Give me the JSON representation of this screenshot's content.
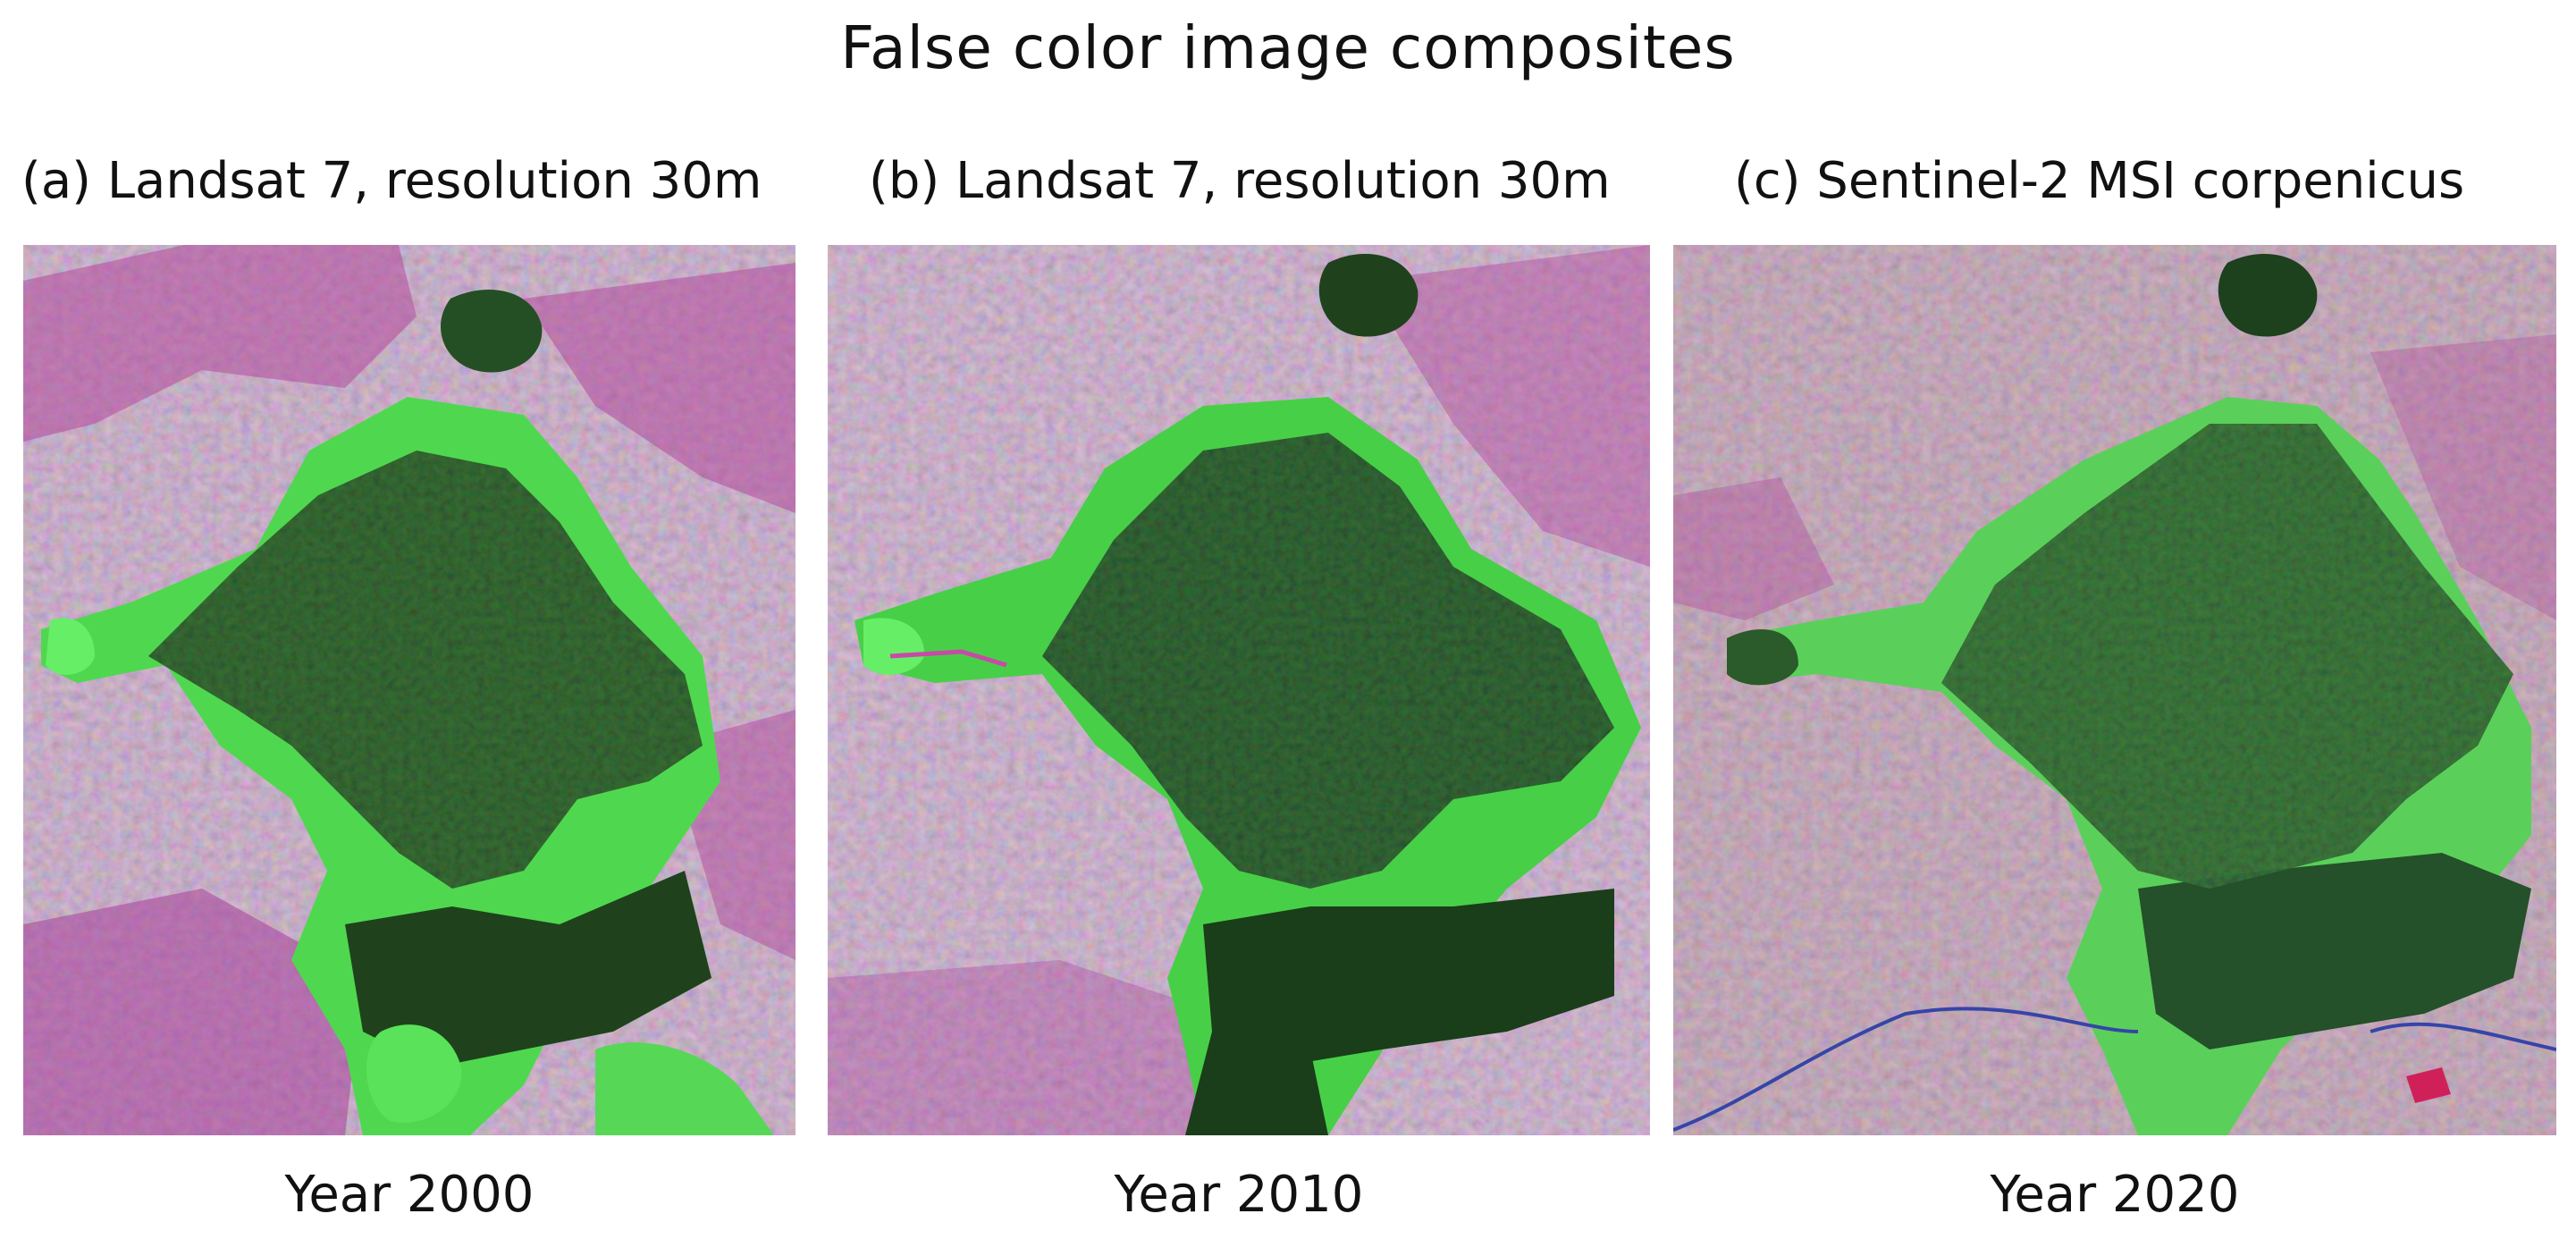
{
  "figure": {
    "title": "False color image composites",
    "panels": [
      {
        "label": "(a) Landsat 7, resolution 30m",
        "year": "Year 2000"
      },
      {
        "label": "(b) Landsat 7, resolution 30m",
        "year": "Year 2010"
      },
      {
        "label": "(c) Sentinel-2 MSI corpenicus",
        "year": "Year 2020"
      }
    ]
  },
  "colors": {
    "background_land": "#a98fa8",
    "urban_magenta": "#b0449a",
    "dense_forest": "#1f4a1f",
    "regrowth_green": "#4fd84f",
    "river_blue": "#3040a0"
  }
}
